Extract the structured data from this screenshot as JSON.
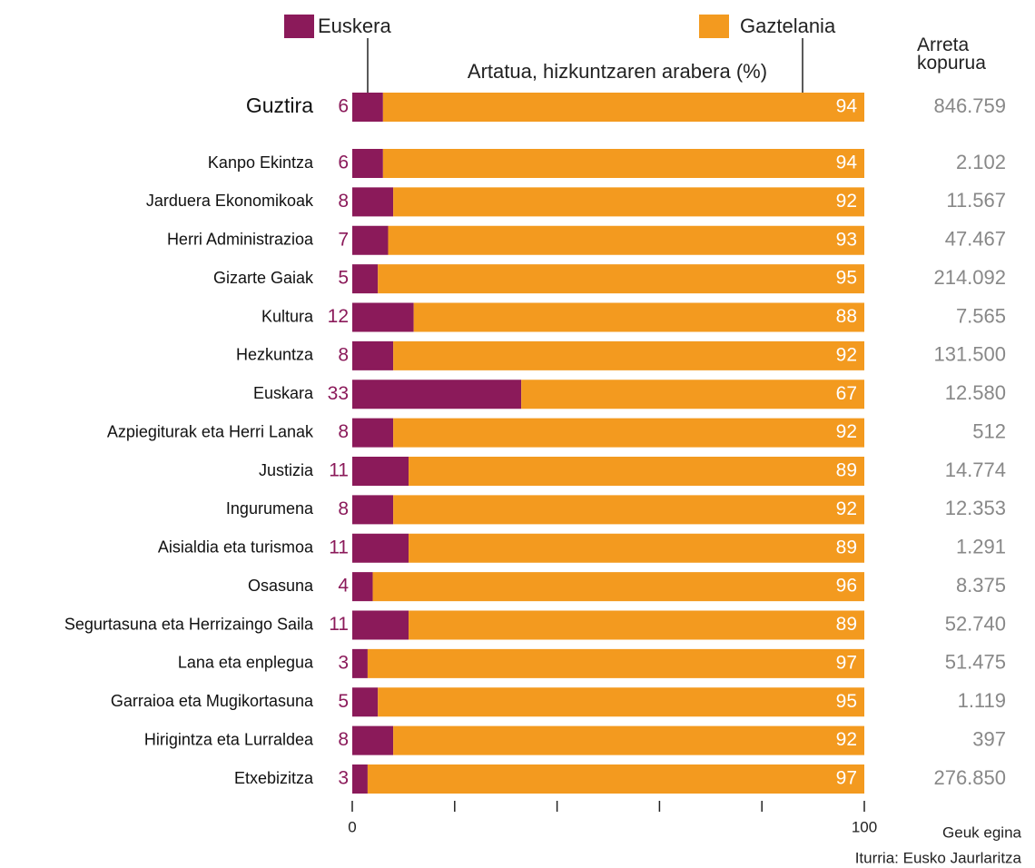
{
  "chart_data": {
    "type": "stacked-barh",
    "subtitle": "Artatua, hizkuntzaren arabera (%)",
    "categories": [
      "Guztira",
      "Kanpo Ekintza",
      "Jarduera Ekonomikoak",
      "Herri Administrazioa",
      "Gizarte Gaiak",
      "Kultura",
      "Hezkuntza",
      "Euskara",
      "Azpiegiturak eta Herri Lanak",
      "Justizia",
      "Ingurumena",
      "Aisialdia eta turismoa",
      "Osasuna",
      "Segurtasuna eta Herrizaingo Saila",
      "Lana eta enplegua",
      "Garraioa eta Mugikortasuna",
      "Hirigintza eta Lurraldea",
      "Etxebizitza"
    ],
    "series": [
      {
        "name": "Euskera",
        "color": "#8b1a5a",
        "values": [
          6,
          6,
          8,
          7,
          5,
          12,
          8,
          33,
          8,
          11,
          8,
          11,
          4,
          11,
          3,
          5,
          8,
          3
        ]
      },
      {
        "name": "Gaztelania",
        "color": "#f39a1f",
        "values": [
          94,
          94,
          92,
          93,
          95,
          88,
          92,
          67,
          92,
          89,
          92,
          89,
          96,
          89,
          97,
          95,
          92,
          97
        ]
      }
    ],
    "totals": {
      "name": "Arreta kopurua",
      "values": [
        846759,
        2102,
        11567,
        47467,
        214092,
        7565,
        131500,
        12580,
        512,
        14774,
        12353,
        1291,
        8375,
        52740,
        51475,
        1119,
        397,
        276850
      ],
      "value_labels": [
        "846.759",
        "2.102",
        "11.567",
        "47.467",
        "214.092",
        "7.565",
        "131.500",
        "12.580",
        "512",
        "14.774",
        "12.353",
        "1.291",
        "8.375",
        "52.740",
        "51.475",
        "1.119",
        "397",
        "276.850"
      ]
    },
    "xlim": [
      0,
      100
    ],
    "xticks": [
      0,
      100
    ],
    "xticks_minor": [
      20,
      40,
      60,
      80
    ],
    "notes": [
      "Geuk egina",
      "Iturria: Eusko Jaurlaritza"
    ]
  }
}
